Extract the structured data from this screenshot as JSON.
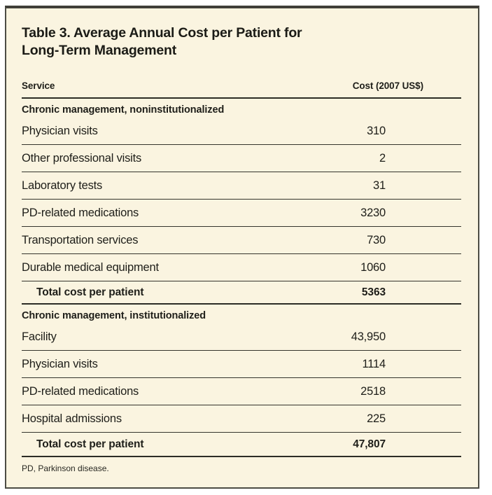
{
  "title": {
    "line1": "Table 3. Average Annual Cost per Patient for",
    "line2": "Long-Term Management"
  },
  "columns": {
    "service": "Service",
    "cost": "Cost (2007 US$)"
  },
  "sections": [
    {
      "header": "Chronic management, noninstitutionalized",
      "rows": [
        {
          "label": "Physician visits",
          "cost": "310"
        },
        {
          "label": "Other professional visits",
          "cost": "2"
        },
        {
          "label": "Laboratory tests",
          "cost": "31"
        },
        {
          "label": "PD-related medications",
          "cost": "3230"
        },
        {
          "label": "Transportation services",
          "cost": "730"
        },
        {
          "label": "Durable medical equipment",
          "cost": "1060"
        }
      ],
      "total": {
        "label": "Total cost per patient",
        "cost": "5363"
      }
    },
    {
      "header": "Chronic management, institutionalized",
      "rows": [
        {
          "label": "Facility",
          "cost": "43,950"
        },
        {
          "label": "Physician visits",
          "cost": "1114"
        },
        {
          "label": "PD-related medications",
          "cost": "2518"
        },
        {
          "label": "Hospital admissions",
          "cost": "225"
        }
      ],
      "total": {
        "label": "Total cost per patient",
        "cost": "47,807"
      }
    }
  ],
  "footnote": "PD, Parkinson disease.",
  "colors": {
    "card_background": "#faf4e0",
    "card_border": "#4c4c44",
    "rule": "#34342c",
    "heavy_rule": "#2c2c25",
    "text": "#1e1e19"
  }
}
